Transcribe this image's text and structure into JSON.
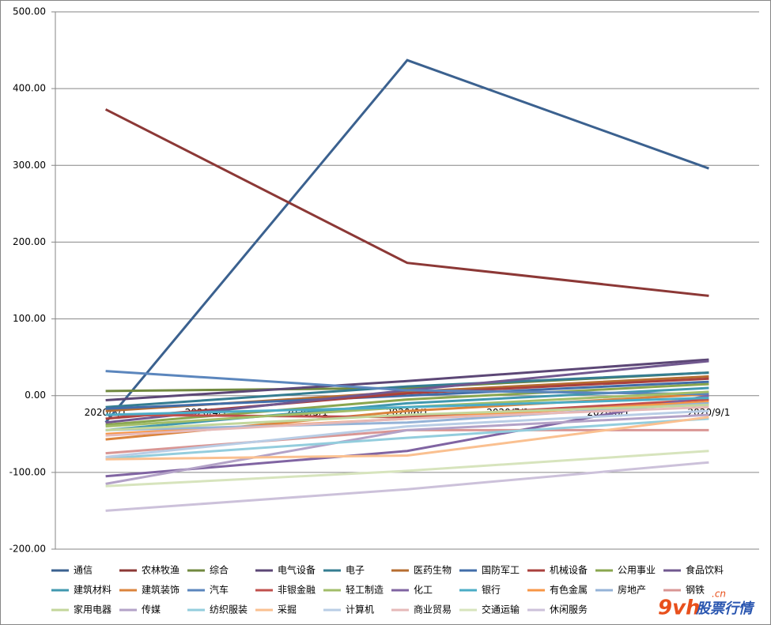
{
  "chart_data": {
    "type": "line",
    "x": [
      "2020/3/1",
      "2020/6/1",
      "2020/9/1"
    ],
    "xticks": [
      "2020/3/1",
      "2020/4/1",
      "2020/5/1",
      "2020/6/1",
      "2020/7/1",
      "2020/8/1",
      "2020/9/1"
    ],
    "ylim": [
      -200,
      500
    ],
    "yticks": [
      {
        "value": -200,
        "label": "-200.00"
      },
      {
        "value": -100,
        "label": "-100.00"
      },
      {
        "value": 0,
        "label": "0.00"
      },
      {
        "value": 100,
        "label": "100.00"
      },
      {
        "value": 200,
        "label": "200.00"
      },
      {
        "value": 300,
        "label": "300.00"
      },
      {
        "value": 400,
        "label": "400.00"
      },
      {
        "value": 500,
        "label": "500.00"
      }
    ],
    "grid": true,
    "legend": "bottom",
    "series": [
      {
        "name": "通信",
        "color": "#3b618f",
        "values": [
          -35,
          437,
          296
        ]
      },
      {
        "name": "农林牧渔",
        "color": "#8c3836",
        "values": [
          373,
          173,
          130
        ]
      },
      {
        "name": "综合",
        "color": "#71893f",
        "values": [
          6,
          10,
          30
        ]
      },
      {
        "name": "电气设备",
        "color": "#5c4776",
        "values": [
          -6,
          19,
          47
        ]
      },
      {
        "name": "电子",
        "color": "#357d91",
        "values": [
          -15,
          12,
          30
        ]
      },
      {
        "name": "医药生物",
        "color": "#b66d31",
        "values": [
          -20,
          5,
          25
        ]
      },
      {
        "name": "国防军工",
        "color": "#426da9",
        "values": [
          -17,
          0,
          18
        ]
      },
      {
        "name": "机械设备",
        "color": "#a9403d",
        "values": [
          -30,
          3,
          22
        ]
      },
      {
        "name": "公用事业",
        "color": "#8aa64f",
        "values": [
          -38,
          -5,
          15
        ]
      },
      {
        "name": "食品饮料",
        "color": "#71588f",
        "values": [
          -35,
          7,
          45
        ]
      },
      {
        "name": "建筑材料",
        "color": "#4198af",
        "values": [
          -45,
          -10,
          10
        ]
      },
      {
        "name": "建筑装饰",
        "color": "#db843d",
        "values": [
          -57,
          -20,
          2
        ]
      },
      {
        "name": "汽车",
        "color": "#5b86bd",
        "values": [
          32,
          7,
          2
        ]
      },
      {
        "name": "非银金融",
        "color": "#c0504d",
        "values": [
          -25,
          -28,
          -5
        ]
      },
      {
        "name": "轻工制造",
        "color": "#a2bd69",
        "values": [
          -40,
          -15,
          5
        ]
      },
      {
        "name": "化工",
        "color": "#8064a2",
        "values": [
          -105,
          -72,
          0
        ]
      },
      {
        "name": "银行",
        "color": "#4bacc6",
        "values": [
          -25,
          -15,
          -3
        ]
      },
      {
        "name": "有色金属",
        "color": "#f79646",
        "values": [
          -50,
          -30,
          -8
        ]
      },
      {
        "name": "房地产",
        "color": "#95b3d7",
        "values": [
          -45,
          -35,
          -10
        ]
      },
      {
        "name": "钢铁",
        "color": "#d99694",
        "values": [
          -75,
          -45,
          -45
        ]
      },
      {
        "name": "家用电器",
        "color": "#c3d69b",
        "values": [
          -45,
          -25,
          -12
        ]
      },
      {
        "name": "传媒",
        "color": "#b3a2c7",
        "values": [
          -115,
          -45,
          -25
        ]
      },
      {
        "name": "纺织服装",
        "color": "#93cddd",
        "values": [
          -82,
          -55,
          -30
        ]
      },
      {
        "name": "采掘",
        "color": "#fac090",
        "values": [
          -83,
          -78,
          -28
        ]
      },
      {
        "name": "计算机",
        "color": "#b9cde5",
        "values": [
          -80,
          -40,
          -20
        ]
      },
      {
        "name": "商业贸易",
        "color": "#e6b9b8",
        "values": [
          -52,
          -30,
          -15
        ]
      },
      {
        "name": "交通运输",
        "color": "#d7e4bd",
        "values": [
          -118,
          -98,
          -72
        ]
      },
      {
        "name": "休闲服务",
        "color": "#ccc1da",
        "values": [
          -150,
          -122,
          -87
        ]
      }
    ],
    "watermark": {
      "logo": "9vh",
      "text": "股票行情",
      "domain": ".cn"
    }
  }
}
